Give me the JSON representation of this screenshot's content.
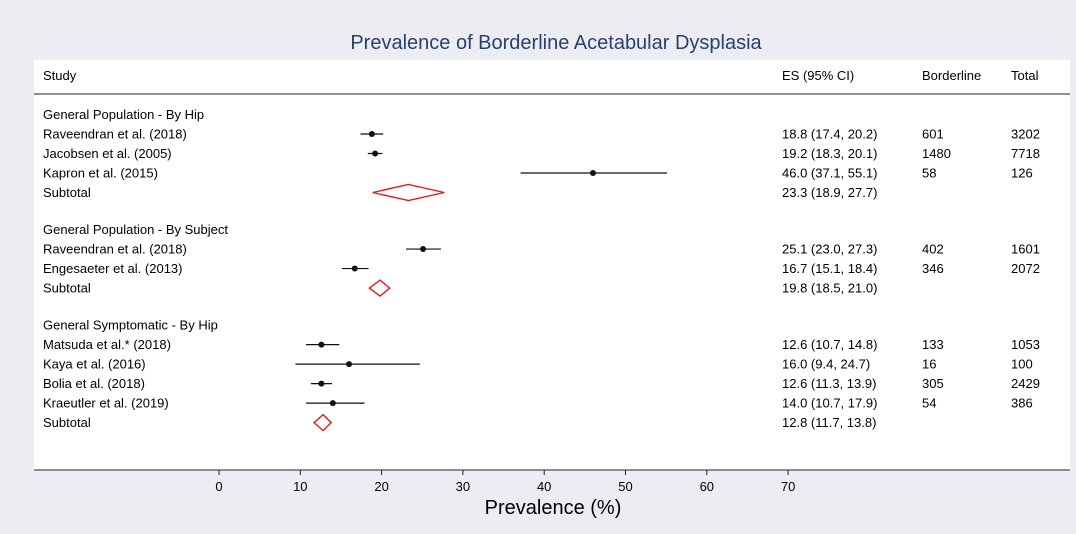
{
  "chart_data": {
    "type": "forest",
    "title": "Prevalence of Borderline Acetabular Dysplasia",
    "xlabel": "Prevalence (%)",
    "xlim": [
      0,
      70
    ],
    "xticks": [
      "0",
      "10",
      "20",
      "30",
      "40",
      "50",
      "60",
      "70"
    ],
    "columns": {
      "study": "Study",
      "es": "ES (95% CI)",
      "borderline": "Borderline",
      "total": "Total"
    },
    "colors": {
      "title": "#2b3f6c",
      "point": "#111111",
      "subtotal_diamond": "#e0191c",
      "background": "#ebedf2",
      "panel": "#ffffff"
    },
    "groups": [
      {
        "label": "General Population - By Hip",
        "studies": [
          {
            "name": "Raveendran et al. (2018)",
            "es": 18.8,
            "lo": 17.4,
            "hi": 20.2,
            "ci_text": "18.8 (17.4, 20.2)",
            "borderline": "601",
            "total": "3202"
          },
          {
            "name": "Jacobsen et al. (2005)",
            "es": 19.2,
            "lo": 18.3,
            "hi": 20.1,
            "ci_text": "19.2 (18.3, 20.1)",
            "borderline": "1480",
            "total": "7718"
          },
          {
            "name": "Kapron et al. (2015)",
            "es": 46.0,
            "lo": 37.1,
            "hi": 55.1,
            "ci_text": "46.0 (37.1, 55.1)",
            "borderline": "58",
            "total": "126"
          }
        ],
        "subtotal": {
          "label": "Subtotal",
          "es": 23.3,
          "lo": 18.9,
          "hi": 27.7,
          "ci_text": "23.3 (18.9, 27.7)"
        }
      },
      {
        "label": "General Population - By Subject",
        "studies": [
          {
            "name": "Raveendran et al. (2018)",
            "es": 25.1,
            "lo": 23.0,
            "hi": 27.3,
            "ci_text": "25.1 (23.0, 27.3)",
            "borderline": "402",
            "total": "1601"
          },
          {
            "name": "Engesaeter et al. (2013)",
            "es": 16.7,
            "lo": 15.1,
            "hi": 18.4,
            "ci_text": "16.7 (15.1, 18.4)",
            "borderline": "346",
            "total": "2072"
          }
        ],
        "subtotal": {
          "label": "Subtotal",
          "es": 19.8,
          "lo": 18.5,
          "hi": 21.0,
          "ci_text": "19.8 (18.5, 21.0)"
        }
      },
      {
        "label": "General Symptomatic - By Hip",
        "studies": [
          {
            "name": "Matsuda et al.* (2018)",
            "es": 12.6,
            "lo": 10.7,
            "hi": 14.8,
            "ci_text": "12.6 (10.7, 14.8)",
            "borderline": "133",
            "total": "1053"
          },
          {
            "name": "Kaya et al. (2016)",
            "es": 16.0,
            "lo": 9.4,
            "hi": 24.7,
            "ci_text": "16.0 (9.4, 24.7)",
            "borderline": "16",
            "total": "100"
          },
          {
            "name": "Bolia et al. (2018)",
            "es": 12.6,
            "lo": 11.3,
            "hi": 13.9,
            "ci_text": "12.6 (11.3, 13.9)",
            "borderline": "305",
            "total": "2429"
          },
          {
            "name": "Kraeutler et al. (2019)",
            "es": 14.0,
            "lo": 10.7,
            "hi": 17.9,
            "ci_text": "14.0 (10.7, 17.9)",
            "borderline": "54",
            "total": "386"
          }
        ],
        "subtotal": {
          "label": "Subtotal",
          "es": 12.8,
          "lo": 11.7,
          "hi": 13.8,
          "ci_text": "12.8 (11.7, 13.8)"
        }
      }
    ]
  }
}
